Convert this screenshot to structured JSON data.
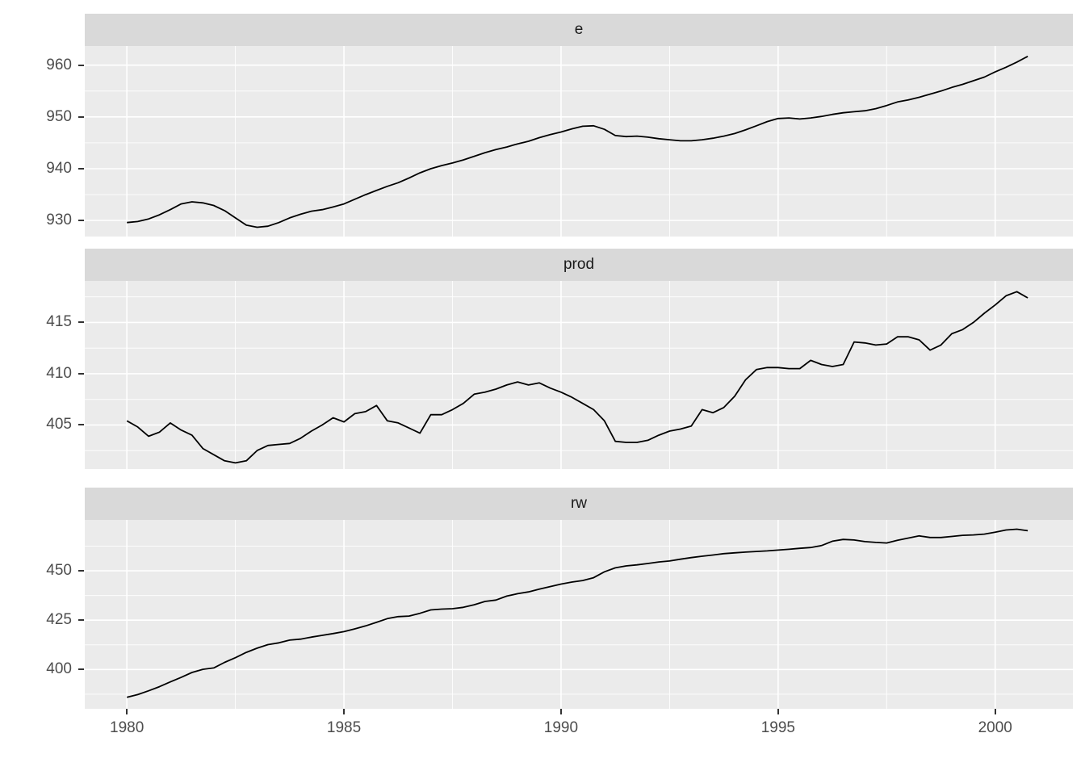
{
  "chart_data": {
    "type": "line",
    "title": "",
    "xlabel": "",
    "ylabel": "",
    "legend": "none",
    "grid": "on",
    "facet_layout": "rows",
    "x": {
      "start": 1980,
      "step": 0.25,
      "n": 84,
      "xlim": [
        1979.03,
        2001.79
      ],
      "major": [
        1980,
        1985,
        1990,
        1995,
        2000
      ],
      "minor": [
        1982.5,
        1987.5,
        1992.5,
        1997.5
      ],
      "tick_labels": [
        "1980",
        "1985",
        "1990",
        "1995",
        "2000"
      ]
    },
    "facets": [
      {
        "label": "e",
        "ylim": [
          926.9,
          963.7
        ],
        "y_major": [
          930,
          940,
          950,
          960
        ],
        "y_minor": [
          935,
          945,
          955
        ],
        "y_tick_labels": [
          "930",
          "940",
          "950",
          "960"
        ],
        "values": [
          929.6,
          929.8,
          930.3,
          931.1,
          932.1,
          933.2,
          933.6,
          933.4,
          932.9,
          931.9,
          930.5,
          929.1,
          928.7,
          928.9,
          929.6,
          930.5,
          931.2,
          931.8,
          932.1,
          932.6,
          933.2,
          934.1,
          935.0,
          935.8,
          936.6,
          937.3,
          938.2,
          939.2,
          940.0,
          940.6,
          941.1,
          941.7,
          942.4,
          943.1,
          943.7,
          944.2,
          944.8,
          945.3,
          946.0,
          946.6,
          947.1,
          947.7,
          948.2,
          948.3,
          947.6,
          946.4,
          946.2,
          946.3,
          946.1,
          945.8,
          945.6,
          945.4,
          945.4,
          945.6,
          945.9,
          946.3,
          946.8,
          947.5,
          948.3,
          949.1,
          949.7,
          949.8,
          949.6,
          949.8,
          950.1,
          950.5,
          950.8,
          951.0,
          951.2,
          951.6,
          952.2,
          952.9,
          953.3,
          953.8,
          954.4,
          955.0,
          955.7,
          956.3,
          957.0,
          957.7,
          958.7,
          959.6,
          960.6,
          961.7
        ]
      },
      {
        "label": "prod",
        "ylim": [
          400.7,
          419.05
        ],
        "y_major": [
          405,
          410,
          415
        ],
        "y_minor": [
          402.5,
          407.5,
          412.5,
          417.5
        ],
        "y_tick_labels": [
          "405",
          "410",
          "415"
        ],
        "values": [
          405.4,
          404.8,
          403.9,
          404.3,
          405.2,
          404.5,
          404.0,
          402.7,
          402.1,
          401.5,
          401.3,
          401.5,
          402.5,
          403.0,
          403.1,
          403.2,
          403.7,
          404.4,
          405.0,
          405.7,
          405.3,
          406.1,
          406.3,
          406.9,
          405.4,
          405.2,
          404.7,
          404.2,
          406.0,
          406.0,
          406.5,
          407.1,
          408.0,
          408.2,
          408.5,
          408.9,
          409.2,
          408.9,
          409.1,
          408.6,
          408.2,
          407.7,
          407.1,
          406.5,
          405.4,
          403.4,
          403.3,
          403.3,
          403.5,
          404.0,
          404.4,
          404.6,
          404.9,
          406.5,
          406.2,
          406.7,
          407.8,
          409.4,
          410.4,
          410.6,
          410.6,
          410.5,
          410.5,
          411.3,
          410.9,
          410.7,
          410.9,
          413.1,
          413.0,
          412.8,
          412.9,
          413.6,
          413.6,
          413.3,
          412.3,
          412.8,
          413.9,
          414.3,
          415.0,
          415.9,
          416.7,
          417.6,
          418.0,
          417.4
        ]
      },
      {
        "label": "rw",
        "ylim": [
          380.1,
          475.8
        ],
        "y_major": [
          400,
          425,
          450
        ],
        "y_minor": [
          387.5,
          412.5,
          437.5,
          462.5
        ],
        "y_tick_labels": [
          "400",
          "425",
          "450"
        ],
        "values": [
          385.9,
          387.3,
          389.2,
          391.3,
          393.7,
          396.0,
          398.5,
          400.1,
          400.8,
          403.6,
          406.0,
          408.7,
          410.8,
          412.6,
          413.5,
          414.9,
          415.4,
          416.4,
          417.3,
          418.2,
          419.2,
          420.6,
          422.1,
          423.9,
          425.8,
          426.8,
          427.1,
          428.5,
          430.2,
          430.6,
          430.8,
          431.5,
          432.8,
          434.5,
          435.2,
          437.2,
          438.4,
          439.3,
          440.7,
          442.0,
          443.3,
          444.3,
          445.1,
          446.5,
          449.5,
          451.5,
          452.5,
          453.0,
          453.7,
          454.5,
          455.0,
          455.9,
          456.7,
          457.4,
          458.0,
          458.7,
          459.1,
          459.5,
          459.8,
          460.1,
          460.5,
          460.9,
          461.4,
          461.8,
          462.8,
          465.0,
          465.9,
          465.6,
          464.8,
          464.4,
          464.1,
          465.5,
          466.6,
          467.7,
          466.9,
          466.9,
          467.4,
          468.0,
          468.2,
          468.6,
          469.6,
          470.7,
          471.1,
          470.3
        ]
      }
    ],
    "styles": {
      "panel_bg": "#EBEBEB",
      "strip_bg": "#D9D9D9",
      "grid_color": "#FFFFFF",
      "line_color": "#000000",
      "tick_color": "#333333",
      "tick_label_color": "#4D4D4D",
      "strip_text_color": "#1A1A1A",
      "background": "#FFFFFF"
    }
  }
}
